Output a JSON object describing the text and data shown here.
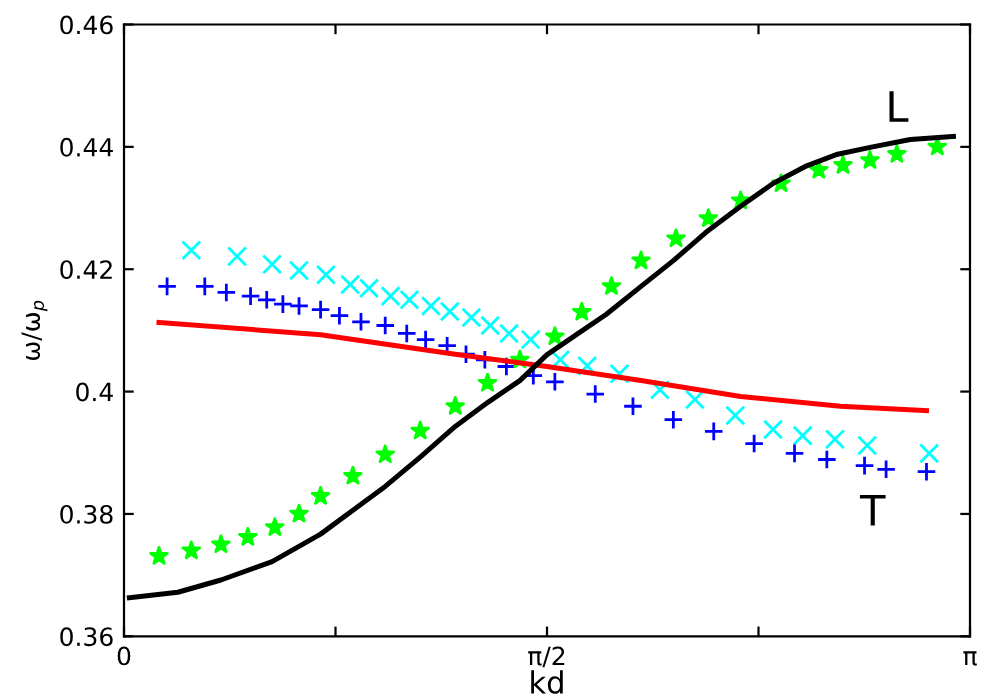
{
  "chart_data": {
    "type": "line",
    "xlabel": "kd",
    "ylabel": "ω/ω$_{p}$",
    "xlim": [
      0,
      3.1416
    ],
    "ylim": [
      0.36,
      0.46
    ],
    "xticks": [
      0,
      {
        "value": 0.7854,
        "label": null
      },
      {
        "value": 1.5708,
        "label": "π/2"
      },
      {
        "value": 2.3562,
        "label": null
      },
      {
        "value": 3.1416,
        "label": "π"
      }
    ],
    "yticks": [
      0.36,
      0.38,
      {
        "value": 0.4,
        "label": "0.4"
      },
      0.42,
      0.44,
      0.46
    ],
    "grid": false,
    "annotations": [
      "L",
      "T"
    ],
    "series": [
      {
        "type": "scatter",
        "marker": "cross",
        "color": "#00ffff",
        "x": [
          0.25,
          0.42,
          0.55,
          0.65,
          0.75,
          0.84,
          0.91,
          0.99,
          1.06,
          1.14,
          1.21,
          1.29,
          1.36,
          1.43,
          1.51,
          1.62,
          1.72,
          1.84,
          1.99,
          2.12,
          2.27,
          2.41,
          2.52,
          2.64,
          2.76,
          2.99
        ],
        "values": [
          0.4231,
          0.4221,
          0.4208,
          0.4198,
          0.4191,
          0.4175,
          0.4169,
          0.4156,
          0.415,
          0.414,
          0.4131,
          0.4121,
          0.4108,
          0.4095,
          0.4085,
          0.4052,
          0.4042,
          0.4029,
          0.4003,
          0.3987,
          0.3961,
          0.3938,
          0.3928,
          0.3922,
          0.3912,
          0.3899
        ]
      },
      {
        "type": "scatter",
        "marker": "plus",
        "color": "#0000ff",
        "x": [
          0.16,
          0.3,
          0.38,
          0.47,
          0.53,
          0.59,
          0.65,
          0.73,
          0.8,
          0.88,
          0.97,
          1.05,
          1.12,
          1.2,
          1.27,
          1.34,
          1.42,
          1.52,
          1.6,
          1.75,
          1.89,
          2.04,
          2.19,
          2.34,
          2.49,
          2.61,
          2.75,
          2.83,
          2.98
        ],
        "values": [
          0.4172,
          0.4172,
          0.4162,
          0.4156,
          0.415,
          0.4143,
          0.414,
          0.4134,
          0.4124,
          0.4114,
          0.4108,
          0.4095,
          0.4085,
          0.4075,
          0.4061,
          0.4052,
          0.4041,
          0.4026,
          0.4016,
          0.3996,
          0.3976,
          0.3954,
          0.3935,
          0.3915,
          0.3899,
          0.3889,
          0.3879,
          0.3873,
          0.3869
        ]
      },
      {
        "type": "scatter",
        "marker": "star",
        "color": "#00ff00",
        "x": [
          0.13,
          0.25,
          0.36,
          0.46,
          0.56,
          0.65,
          0.73,
          0.85,
          0.97,
          1.1,
          1.23,
          1.35,
          1.47,
          1.6,
          1.7,
          1.81,
          1.92,
          2.05,
          2.17,
          2.29,
          2.44,
          2.58,
          2.67,
          2.77,
          2.87,
          3.02
        ],
        "values": [
          0.3731,
          0.374,
          0.375,
          0.3762,
          0.3778,
          0.38,
          0.3829,
          0.3862,
          0.3897,
          0.3936,
          0.3976,
          0.4014,
          0.4052,
          0.409,
          0.413,
          0.4172,
          0.4214,
          0.425,
          0.4283,
          0.4312,
          0.434,
          0.4362,
          0.437,
          0.4378,
          0.4388,
          0.44
        ]
      },
      {
        "type": "line",
        "color": "#ff0000",
        "x": [
          0.13,
          0.73,
          1.23,
          1.57,
          1.92,
          2.29,
          2.66,
          2.98
        ],
        "values": [
          0.4113,
          0.4093,
          0.4061,
          0.4041,
          0.4018,
          0.3992,
          0.3976,
          0.3969
        ]
      },
      {
        "color": "#000000",
        "x": [
          0.02,
          0.2,
          0.36,
          0.55,
          0.73,
          0.97,
          1.1,
          1.23,
          1.35,
          1.47,
          1.57,
          1.68,
          1.79,
          1.92,
          2.04,
          2.16,
          2.29,
          2.41,
          2.53,
          2.65,
          2.78,
          2.92,
          3.08
        ],
        "values": [
          0.3663,
          0.3672,
          0.3692,
          0.3722,
          0.3767,
          0.3845,
          0.3893,
          0.3943,
          0.3982,
          0.4018,
          0.406,
          0.4093,
          0.4126,
          0.4172,
          0.4214,
          0.426,
          0.4303,
          0.434,
          0.4368,
          0.4388,
          0.44,
          0.4412,
          0.4417
        ]
      }
    ]
  }
}
